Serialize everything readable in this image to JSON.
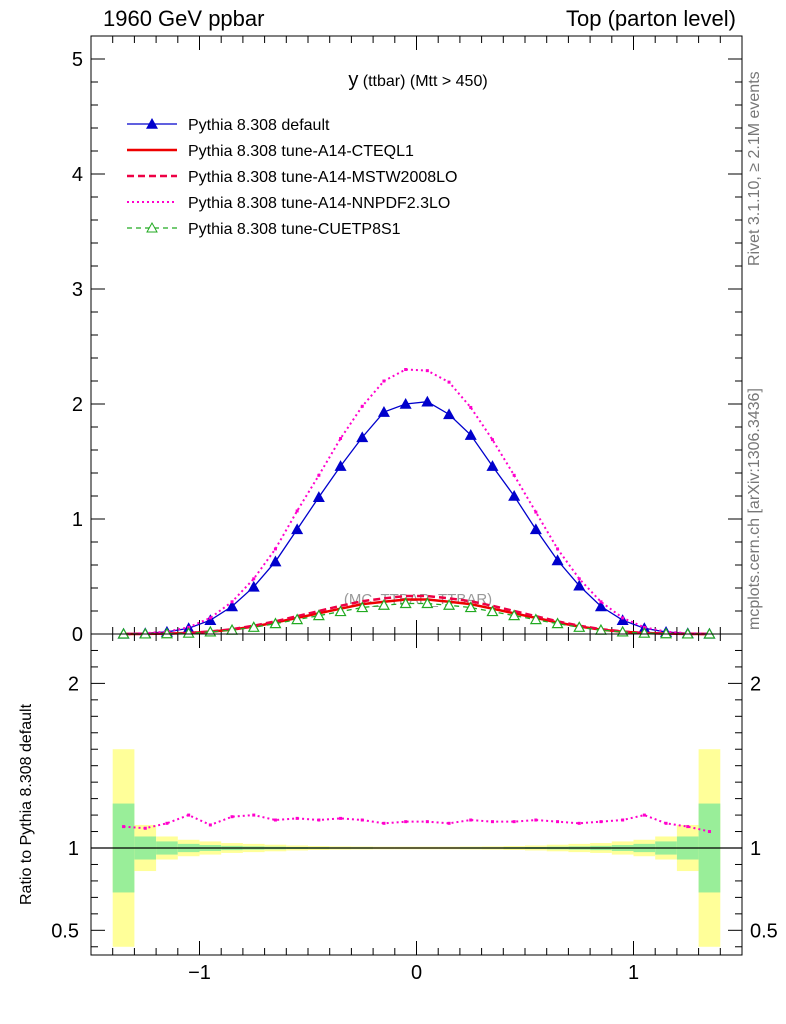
{
  "header": {
    "left": "1960 GeV ppbar",
    "right": "Top (parton level)"
  },
  "side_labels": {
    "rivet": "Rivet 3.1.10, ≥ 2.1M events",
    "mcplots": "mcplots.cern.ch [arXiv:1306.3436]"
  },
  "ratio_ylabel": "Ratio to Pythia 8.308 default",
  "chart_data": [
    {
      "type": "line",
      "title": "y (ttbar) (Mtt > 450)",
      "title_main": "y",
      "title_sub": "(ttbar) (Mtt > 450)",
      "watermark": "(MC_TTBAR_TTBAR)",
      "xlim": [
        -1.5,
        1.5
      ],
      "ylim": [
        0,
        5.2
      ],
      "yticks": [
        0,
        1,
        2,
        3,
        4,
        5
      ],
      "xticks": [
        -1,
        0,
        1
      ],
      "legend_position": "top-left",
      "x": [
        -1.35,
        -1.25,
        -1.15,
        -1.05,
        -0.95,
        -0.85,
        -0.75,
        -0.65,
        -0.55,
        -0.45,
        -0.35,
        -0.25,
        -0.15,
        -0.05,
        0.05,
        0.15,
        0.25,
        0.35,
        0.45,
        0.55,
        0.65,
        0.75,
        0.85,
        0.95,
        1.05,
        1.15,
        1.25,
        1.35
      ],
      "series": [
        {
          "name": "Pythia 8.308 default",
          "color": "#0000cc",
          "style": "solid-triangle",
          "values": [
            0.002,
            0.006,
            0.018,
            0.05,
            0.12,
            0.24,
            0.41,
            0.63,
            0.91,
            1.19,
            1.46,
            1.71,
            1.93,
            2.0,
            2.02,
            1.91,
            1.73,
            1.46,
            1.2,
            0.91,
            0.64,
            0.42,
            0.24,
            0.12,
            0.05,
            0.017,
            0.006,
            0.002
          ]
        },
        {
          "name": "Pythia 8.308 tune-A14-CTEQL1",
          "color": "#ee0000",
          "style": "solid",
          "values": [
            0.0002,
            0.0008,
            0.003,
            0.008,
            0.02,
            0.038,
            0.065,
            0.1,
            0.14,
            0.18,
            0.22,
            0.26,
            0.28,
            0.3,
            0.3,
            0.28,
            0.26,
            0.22,
            0.18,
            0.14,
            0.1,
            0.065,
            0.038,
            0.02,
            0.008,
            0.003,
            0.0008,
            0.0002
          ]
        },
        {
          "name": "Pythia 8.308 tune-A14-MSTW2008LO",
          "color": "#ee0044",
          "style": "dashed",
          "values": [
            0.0002,
            0.0009,
            0.0035,
            0.009,
            0.022,
            0.042,
            0.072,
            0.11,
            0.155,
            0.2,
            0.245,
            0.285,
            0.31,
            0.33,
            0.33,
            0.31,
            0.285,
            0.245,
            0.2,
            0.155,
            0.11,
            0.072,
            0.042,
            0.022,
            0.009,
            0.0035,
            0.0009,
            0.0002
          ]
        },
        {
          "name": "Pythia 8.308 tune-A14-NNPDF2.3LO",
          "color": "#ff00cc",
          "style": "dotted",
          "values": [
            0.002,
            0.007,
            0.021,
            0.058,
            0.14,
            0.28,
            0.48,
            0.74,
            1.07,
            1.38,
            1.7,
            1.98,
            2.2,
            2.3,
            2.29,
            2.19,
            1.97,
            1.69,
            1.38,
            1.06,
            0.74,
            0.48,
            0.28,
            0.14,
            0.058,
            0.02,
            0.007,
            0.002
          ]
        },
        {
          "name": "Pythia 8.308 tune-CUETP8S1",
          "color": "#22aa22",
          "style": "dashed-open-triangle",
          "values": [
            0.0002,
            0.0007,
            0.0025,
            0.007,
            0.018,
            0.034,
            0.058,
            0.09,
            0.125,
            0.16,
            0.195,
            0.23,
            0.25,
            0.265,
            0.265,
            0.25,
            0.23,
            0.195,
            0.16,
            0.125,
            0.09,
            0.058,
            0.034,
            0.018,
            0.007,
            0.0025,
            0.0007,
            0.0002
          ]
        }
      ]
    },
    {
      "type": "line",
      "title": "",
      "ylabel": "Ratio to Pythia 8.308 default",
      "xlim": [
        -1.5,
        1.5
      ],
      "ylim": [
        0.35,
        2.3
      ],
      "yticks": [
        0.5,
        1,
        2
      ],
      "xticks": [
        -1,
        0,
        1
      ],
      "bands_x_edges": [
        -1.4,
        -1.3,
        -1.2,
        -1.1,
        -1.0,
        -0.9,
        -0.8,
        -0.7,
        -0.6,
        -0.5,
        -0.4,
        -0.3,
        -0.2,
        -0.1,
        0.0,
        0.1,
        0.2,
        0.3,
        0.4,
        0.5,
        0.6,
        0.7,
        0.8,
        0.9,
        1.0,
        1.1,
        1.2,
        1.3,
        1.4
      ],
      "band_yellow_half_width": [
        0.6,
        0.14,
        0.07,
        0.05,
        0.04,
        0.03,
        0.025,
        0.02,
        0.015,
        0.012,
        0.01,
        0.009,
        0.008,
        0.008,
        0.008,
        0.008,
        0.009,
        0.01,
        0.012,
        0.015,
        0.02,
        0.025,
        0.03,
        0.04,
        0.05,
        0.07,
        0.14,
        0.6
      ],
      "band_green_half_width": [
        0.27,
        0.07,
        0.04,
        0.025,
        0.018,
        0.013,
        0.01,
        0.008,
        0.006,
        0.005,
        0.004,
        0.004,
        0.003,
        0.003,
        0.003,
        0.003,
        0.004,
        0.004,
        0.005,
        0.006,
        0.008,
        0.01,
        0.013,
        0.018,
        0.025,
        0.04,
        0.07,
        0.27
      ],
      "ratio_series": {
        "name": "Pythia 8.308 tune-A14-NNPDF2.3LO",
        "color": "#ff00cc",
        "x": [
          -1.35,
          -1.25,
          -1.15,
          -1.05,
          -0.95,
          -0.85,
          -0.75,
          -0.65,
          -0.55,
          -0.45,
          -0.35,
          -0.25,
          -0.15,
          -0.05,
          0.05,
          0.15,
          0.25,
          0.35,
          0.45,
          0.55,
          0.65,
          0.75,
          0.85,
          0.95,
          1.05,
          1.15,
          1.25,
          1.35
        ],
        "values": [
          1.13,
          1.12,
          1.15,
          1.2,
          1.14,
          1.19,
          1.2,
          1.17,
          1.18,
          1.17,
          1.18,
          1.17,
          1.15,
          1.16,
          1.16,
          1.15,
          1.17,
          1.16,
          1.16,
          1.17,
          1.16,
          1.15,
          1.16,
          1.17,
          1.2,
          1.15,
          1.13,
          1.1
        ]
      }
    }
  ]
}
